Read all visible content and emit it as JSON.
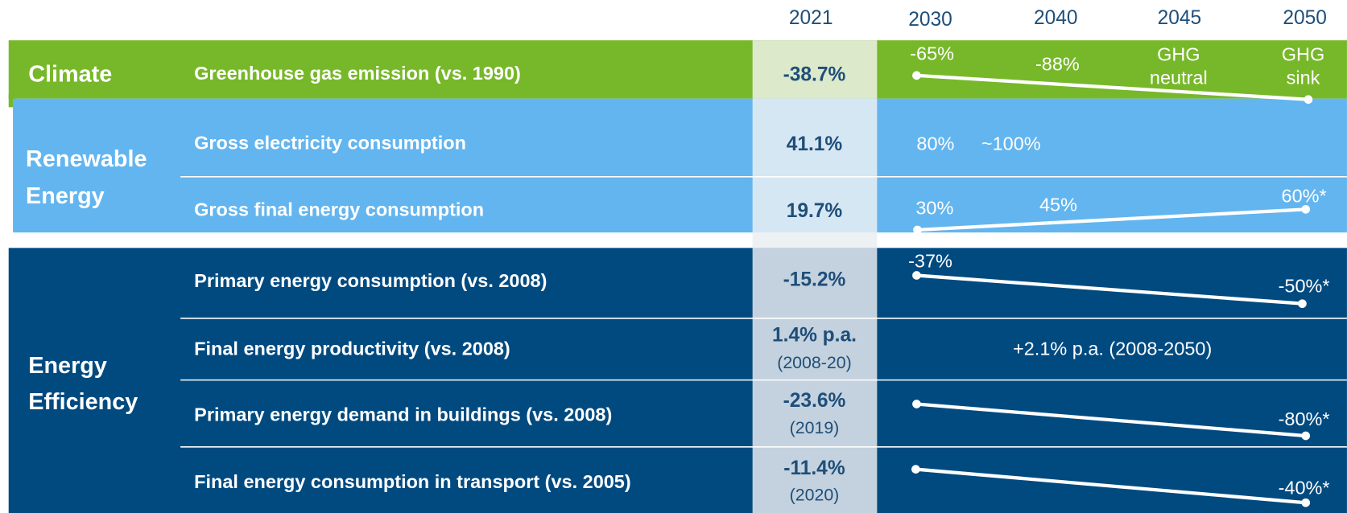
{
  "header": {
    "years": [
      "2021",
      "2030",
      "2040",
      "2045",
      "2050"
    ]
  },
  "sections": [
    {
      "name": [
        "Climate"
      ],
      "rows": [
        {
          "label": "Greenhouse gas emission (vs. 1990)",
          "value": "-38.7%",
          "targets": [
            "-65%",
            "-88%",
            "GHG",
            "neutral",
            "GHG",
            "sink"
          ]
        }
      ]
    },
    {
      "name": [
        "Renewable",
        "Energy"
      ],
      "rows": [
        {
          "label": "Gross electricity consumption",
          "value": "41.1%",
          "targets": [
            "80%",
            "~100%"
          ]
        },
        {
          "label": "Gross final energy consumption",
          "value": "19.7%",
          "targets": [
            "30%",
            "45%",
            "60%*"
          ]
        }
      ]
    },
    {
      "name": [
        "Energy",
        "Efficiency"
      ],
      "rows": [
        {
          "label": "Primary energy consumption (vs. 2008)",
          "value": "-15.2%",
          "targets": [
            "-37%",
            "-50%*"
          ]
        },
        {
          "label": "Final energy productivity (vs. 2008)",
          "value": "1.4% p.a.",
          "note": "(2008-20)",
          "targets": [
            "+2.1% p.a. (2008-2050)"
          ]
        },
        {
          "label": "Primary energy demand in buildings (vs. 2008)",
          "value": "-23.6%",
          "note": "(2019)",
          "targets": [
            "-80%*"
          ]
        },
        {
          "label": "Final energy consumption in transport (vs. 2005)",
          "value": "-11.4%",
          "note": "(2020)",
          "targets": [
            "-40%*"
          ]
        }
      ]
    }
  ]
}
